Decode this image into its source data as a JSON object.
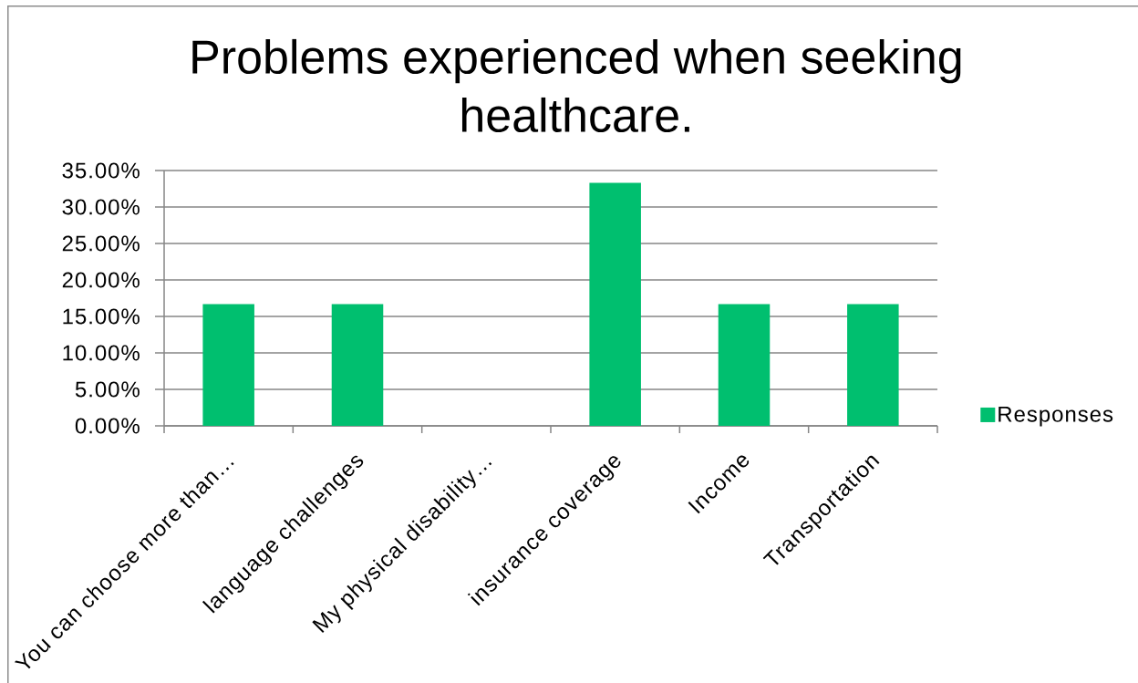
{
  "chart_data": {
    "type": "bar",
    "title": "Problems experienced when seeking healthcare.",
    "categories": [
      "You can choose more than…",
      "language challenges",
      "My physical disability…",
      "insurance coverage",
      "Income",
      "Transportation"
    ],
    "series": [
      {
        "name": "Responses",
        "color": "#00bf6f",
        "values": [
          16.7,
          16.7,
          0,
          33.3,
          16.7,
          16.7
        ]
      }
    ],
    "ylim": [
      0,
      35
    ],
    "yticks": [
      {
        "value": 0,
        "label": "0.00%"
      },
      {
        "value": 5,
        "label": "5.00%"
      },
      {
        "value": 10,
        "label": "10.00%"
      },
      {
        "value": 15,
        "label": "15.00%"
      },
      {
        "value": 20,
        "label": "20.00%"
      },
      {
        "value": 25,
        "label": "25.00%"
      },
      {
        "value": 30,
        "label": "30.00%"
      },
      {
        "value": 35,
        "label": "35.00%"
      }
    ],
    "grid": "y",
    "legend": "right"
  }
}
